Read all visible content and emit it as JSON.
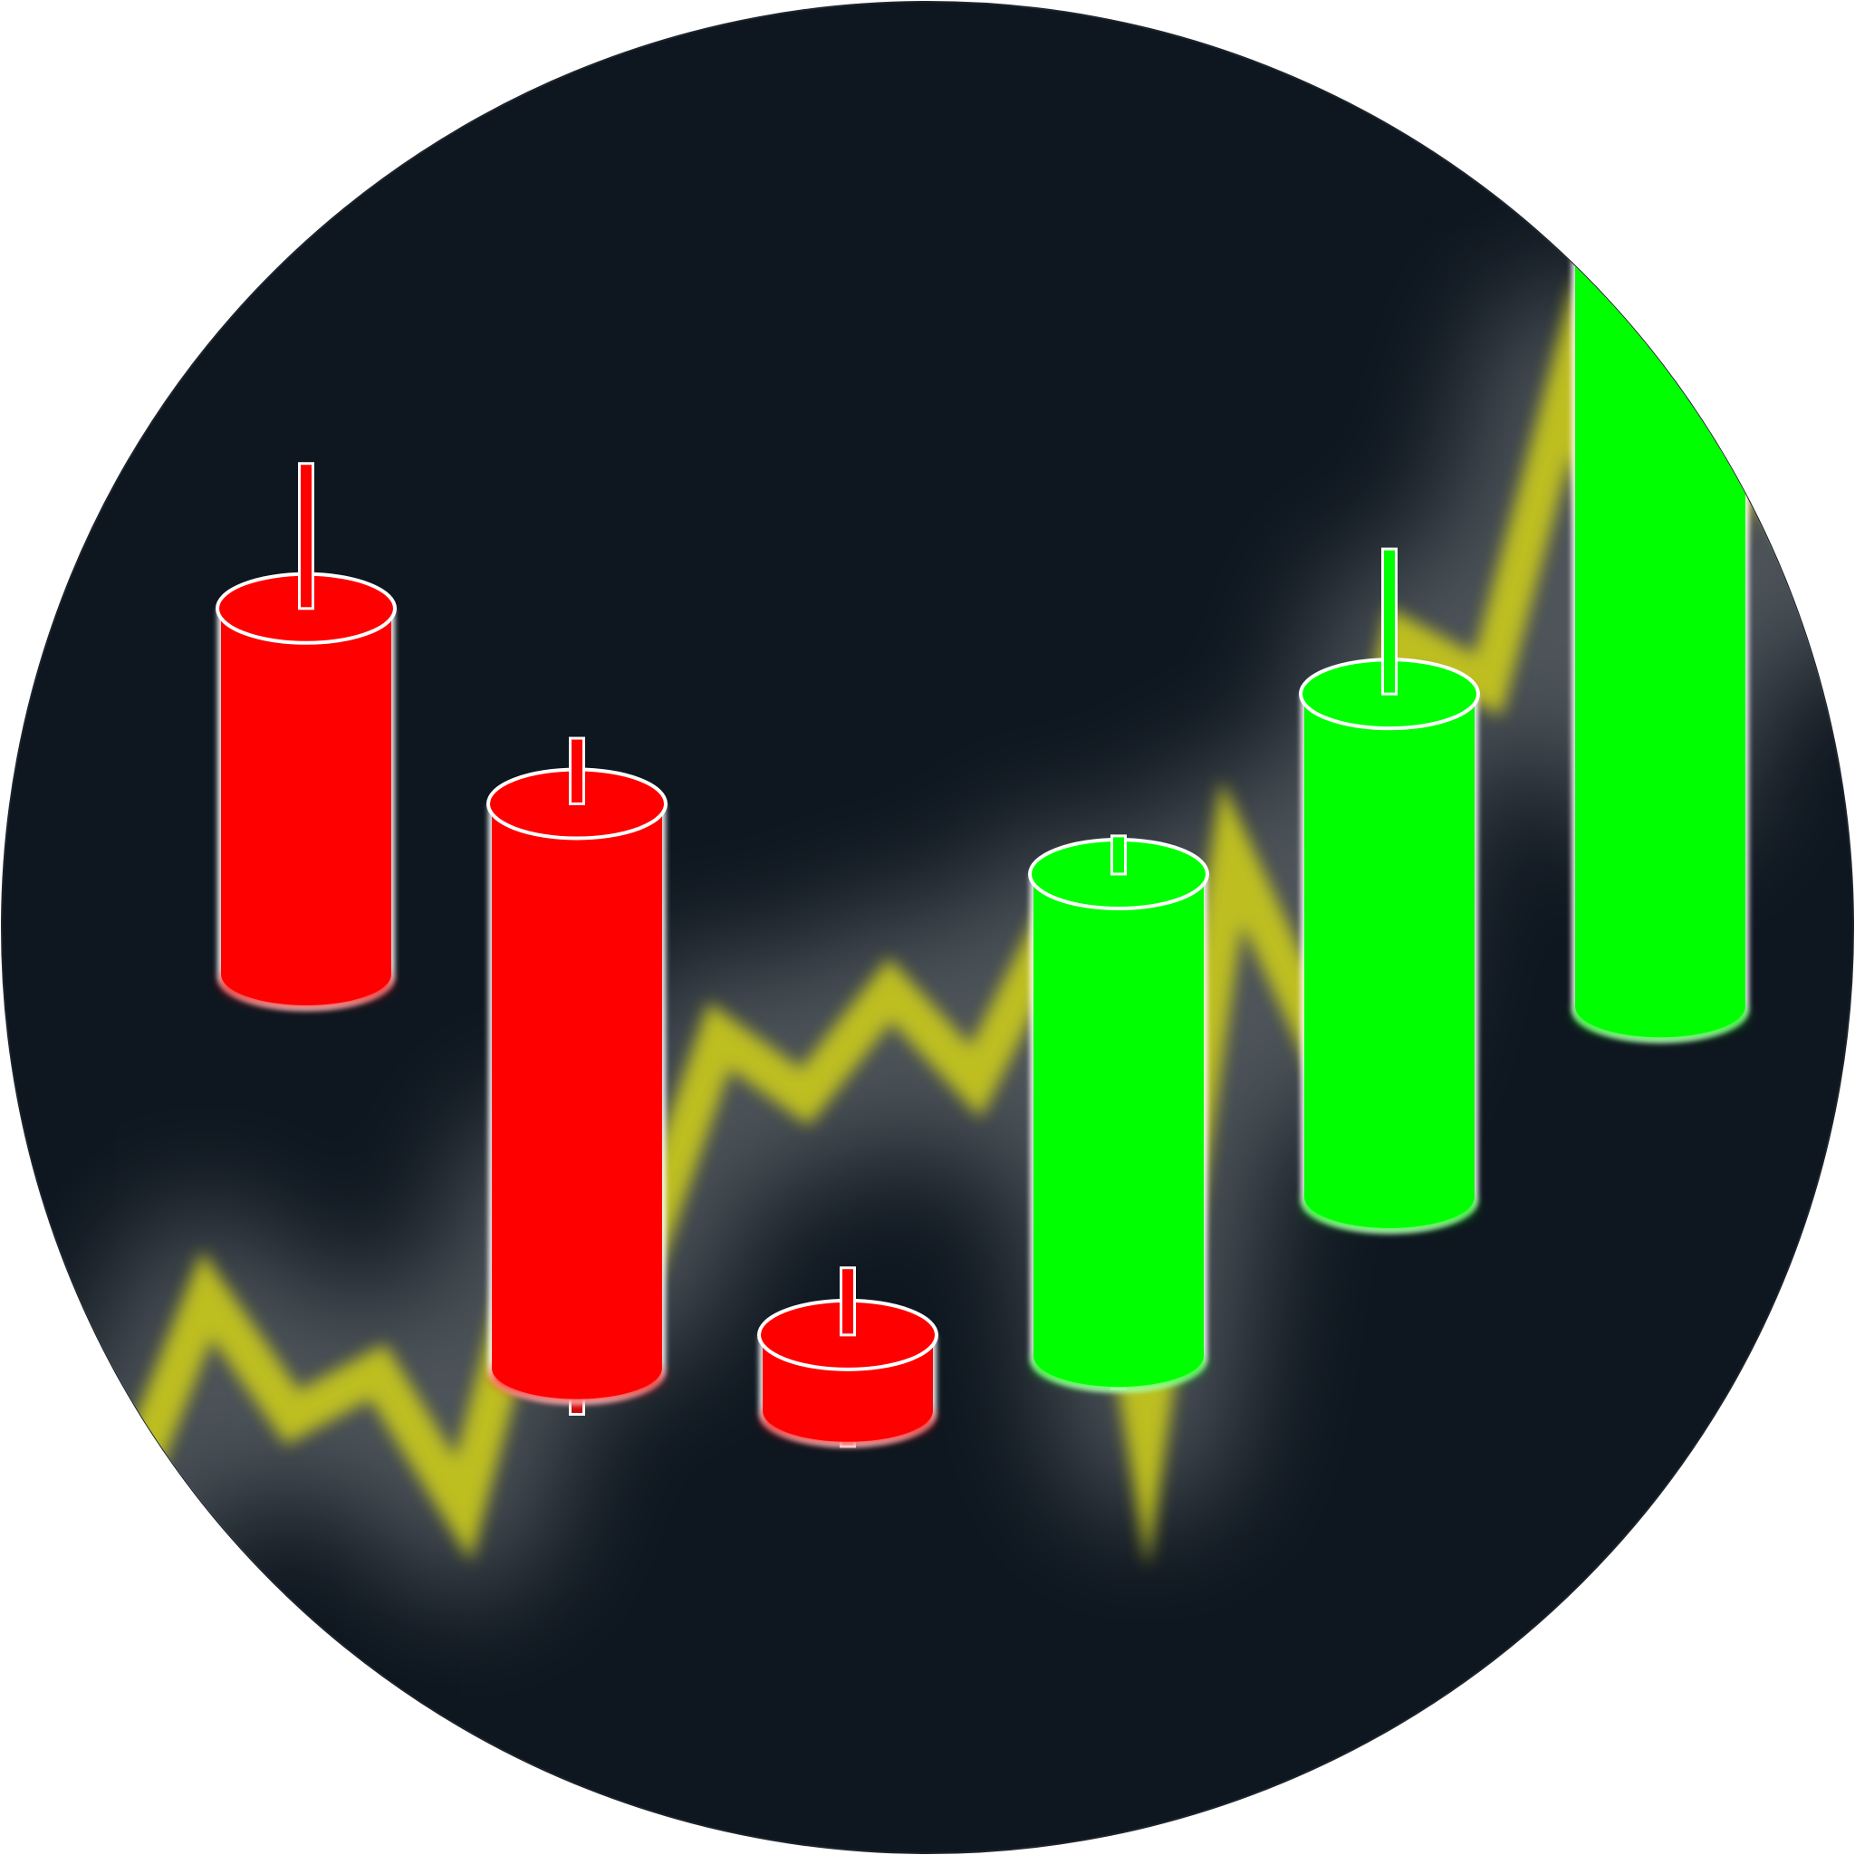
{
  "colors": {
    "background": "#ffffff",
    "badge": "#0e161f",
    "badge_outline": "#1d242c",
    "glow": "#c8cccc",
    "trend_line": "#c8c81e",
    "bearish": "#ff0000",
    "bearish_wick": "#cc0a0a",
    "bullish": "#00ff00",
    "bullish_wick": "#12cc12",
    "outline": "#ffffff"
  },
  "icon": "candlestick-chart-icon",
  "trend": [
    12,
    13,
    27,
    19,
    22,
    13,
    34,
    28,
    44,
    40,
    47,
    41,
    52,
    18,
    56,
    44,
    70,
    67,
    88,
    62,
    83,
    74
  ],
  "candles": [
    {
      "direction": "down",
      "open": 72.0,
      "close": 47.9,
      "high": 81.5,
      "low": 47.9
    },
    {
      "direction": "down",
      "open": 59.2,
      "close": 22.1,
      "high": 63.5,
      "low": 19.2
    },
    {
      "direction": "down",
      "open": 24.4,
      "close": 19.3,
      "high": 28.8,
      "low": 17.1
    },
    {
      "direction": "up",
      "open": 22.9,
      "close": 54.6,
      "high": 57.1,
      "low": 20.9
    },
    {
      "direction": "up",
      "open": 33.3,
      "close": 66.4,
      "high": 75.9,
      "low": 33.3
    },
    {
      "direction": "up",
      "open": 45.8,
      "close": 95.4,
      "high": 95.4,
      "low": 45.8
    }
  ]
}
